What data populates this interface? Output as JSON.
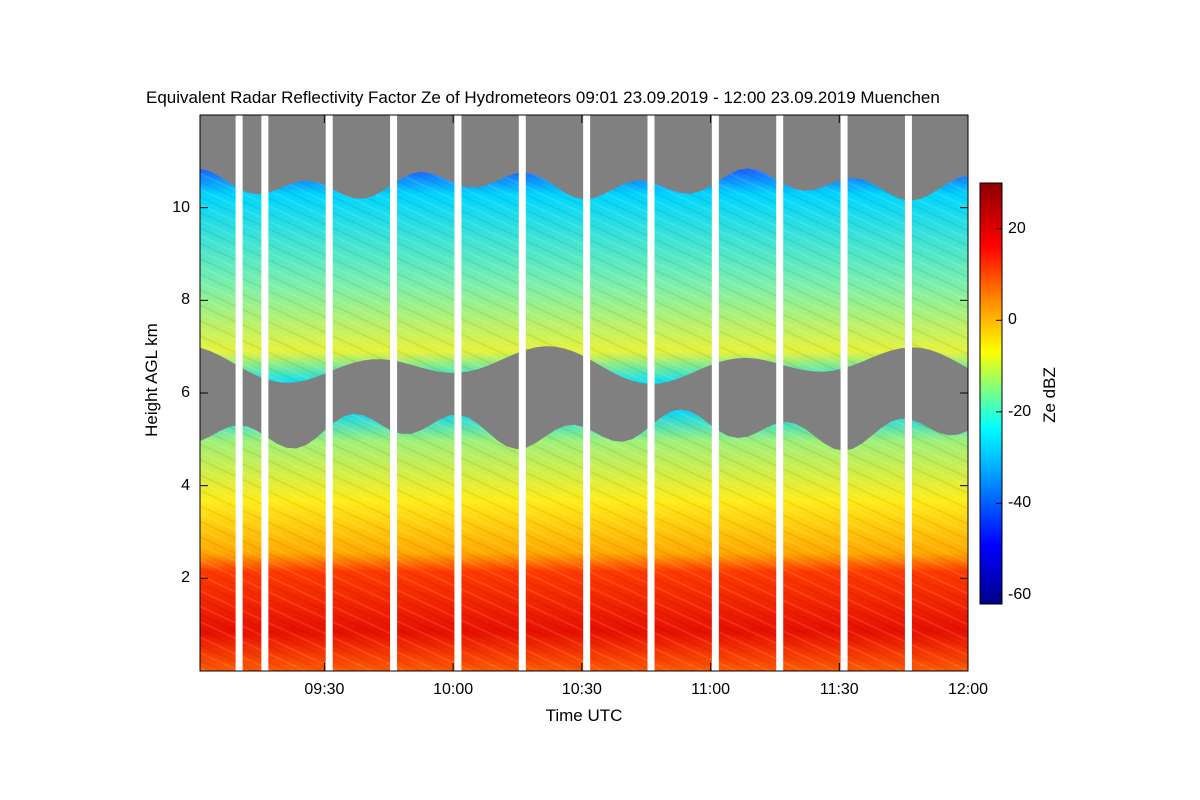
{
  "chart_data": {
    "type": "heatmap",
    "title": "Equivalent Radar Reflectivity Factor Ze of Hydrometeors   09:01 23.09.2019 - 12:00 23.09.2019 Muenchen",
    "xlabel": "Time UTC",
    "ylabel": "Height AGL km",
    "colorbar_label": "Ze dBZ",
    "x_tick_labels": [
      "09:30",
      "10:00",
      "10:30",
      "11:00",
      "11:30",
      "12:00"
    ],
    "x_ticks_minutes": [
      570,
      600,
      630,
      660,
      690,
      720
    ],
    "xlim_minutes": [
      541,
      720
    ],
    "y_tick_labels": [
      "2",
      "4",
      "6",
      "8",
      "10"
    ],
    "y_ticks": [
      2,
      4,
      6,
      8,
      10
    ],
    "ylim": [
      0,
      12
    ],
    "colorbar_tick_labels": [
      "20",
      "0",
      "-20",
      "-40",
      "-60"
    ],
    "colorbar_ticks": [
      20,
      0,
      -20,
      -40,
      -60
    ],
    "colorbar_range": [
      -62,
      30
    ],
    "no_signal_color": "#808080",
    "colormap": [
      "#00008c",
      "#0000ff",
      "#00b4ff",
      "#00ffff",
      "#ffff00",
      "#ff8c00",
      "#ff0000",
      "#8c0000"
    ],
    "data_gap_times_minutes": [
      550,
      556,
      571,
      586,
      601,
      616,
      631,
      646,
      661,
      676,
      691,
      706
    ],
    "layers": [
      {
        "z_bottom_km": 6.6,
        "z_top_km": 10.5,
        "ze_top_dbz": -30,
        "ze_bottom_dbz": -8
      },
      {
        "z_bottom_km": 0.0,
        "z_top_km": 5.2,
        "ze_top_dbz": -25,
        "ze_bottom_dbz": 22
      }
    ],
    "grid": false,
    "legend": "colorbar-right"
  }
}
